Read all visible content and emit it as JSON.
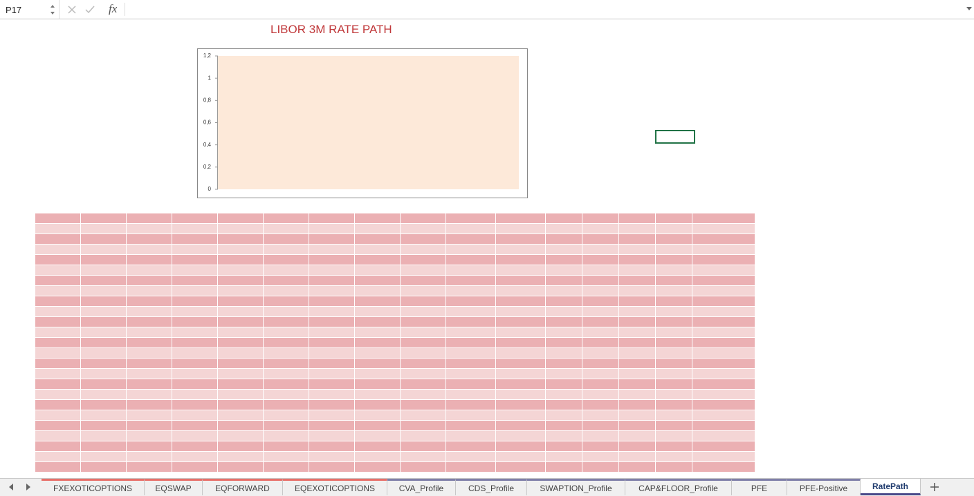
{
  "name_box": "P17",
  "fx_label": "fx",
  "sheet_title": "LIBOR 3M RATE PATH",
  "chart_data": {
    "type": "bar",
    "ylim": [
      0,
      1.2
    ],
    "yticks": [
      0,
      {
        "value": 0.2,
        "label": "0,2"
      },
      {
        "value": 0.4,
        "label": "0,4"
      },
      {
        "value": 0.6,
        "label": "0,6"
      },
      {
        "value": 0.8,
        "label": "0,8"
      },
      1,
      {
        "value": 1.2,
        "label": "1,2"
      }
    ],
    "plot_color": "#fde9d9"
  },
  "tabs": [
    {
      "name": "FXEXOTICOPTIONS",
      "color": "#e8706a"
    },
    {
      "name": "EQSWAP",
      "color": "#e8706a"
    },
    {
      "name": "EQFORWARD",
      "color": "#e8706a"
    },
    {
      "name": "EQEXOTICOPTIONS",
      "color": "#e8706a"
    },
    {
      "name": "CVA_Profile",
      "color": "#7f7fa8"
    },
    {
      "name": "CDS_Profile",
      "color": "#7f7fa8"
    },
    {
      "name": "SWAPTION_Profile",
      "color": "#7f7fa8"
    },
    {
      "name": "CAP&FLOOR_Profile",
      "color": "#7f7fa8"
    },
    {
      "name": "PFE",
      "color": "#7f7fa8"
    },
    {
      "name": "PFE-Positive",
      "color": "#7f7fa8"
    },
    {
      "name": "RatePath",
      "color": "#4a4a8a"
    }
  ],
  "active_tab": 10
}
